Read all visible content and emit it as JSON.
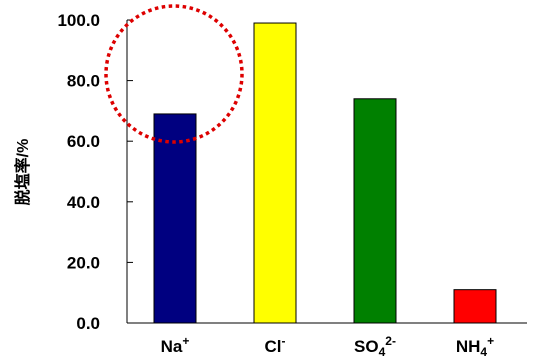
{
  "chart_data": {
    "type": "bar",
    "categories": [
      {
        "base": "Na",
        "sub": "",
        "sup": "+"
      },
      {
        "base": "Cl",
        "sub": "",
        "sup": "-"
      },
      {
        "base": "SO",
        "sub": "4",
        "sup": "2-"
      },
      {
        "base": "NH",
        "sub": "4",
        "sup": "+"
      }
    ],
    "values": [
      69,
      99,
      74,
      11
    ],
    "colors": [
      "#000080",
      "#ffff00",
      "#008000",
      "#ff0000"
    ],
    "ylabel": "脱塩率/%",
    "ylim": [
      0,
      100
    ],
    "yticks": [
      "0.0",
      "20.0",
      "40.0",
      "60.0",
      "80.0",
      "100.0"
    ],
    "highlight": {
      "shape": "dotted-circle",
      "color": "#dd0000",
      "target_category": "Na+"
    }
  }
}
